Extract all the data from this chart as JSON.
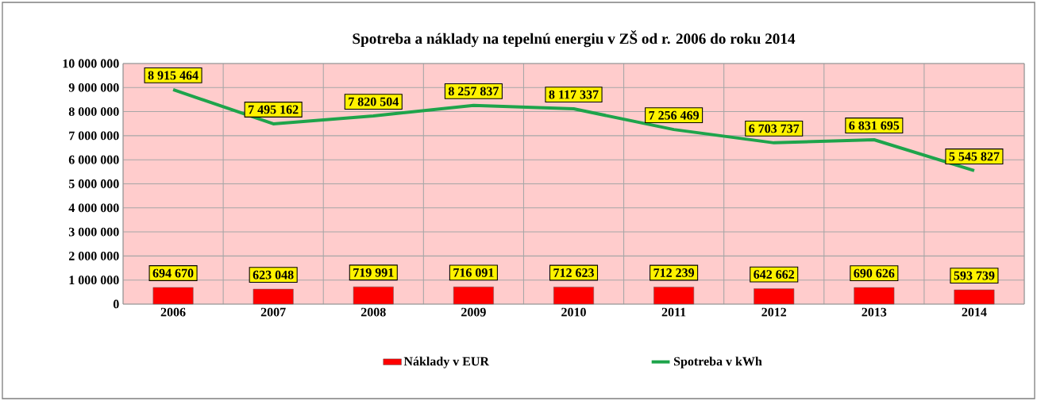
{
  "chart_data": {
    "type": "bar",
    "title": "Spotreba a náklady na  tepelnú energiu v ZŠ od r. 2006 do roku 2014",
    "categories": [
      "2006",
      "2007",
      "2008",
      "2009",
      "2010",
      "2011",
      "2012",
      "2013",
      "2014"
    ],
    "series": [
      {
        "name": "Náklady v EUR",
        "color": "#ff0000",
        "values": [
          694670,
          623048,
          719991,
          716091,
          712623,
          712239,
          642662,
          690626,
          593739
        ],
        "value_labels": [
          "694 670",
          "623 048",
          "719 991",
          "716 091",
          "712 623",
          "712 239",
          "642 662",
          "690 626",
          "593 739"
        ]
      },
      {
        "name": "Spotreba  v kWh",
        "type": "line",
        "color": "#1ea44b",
        "values": [
          8915464,
          7495162,
          7820504,
          8257837,
          8117337,
          7256469,
          6703737,
          6831695,
          5545827
        ],
        "value_labels": [
          "8 915 464",
          "7 495 162",
          "7 820 504",
          "8 257 837",
          "8 117 337",
          "7 256 469",
          "6 703 737",
          "6 831 695",
          "5 545 827"
        ]
      }
    ],
    "ylim": [
      0,
      10000000
    ],
    "yticks": [
      {
        "value": 0,
        "label": "0"
      },
      {
        "value": 1000000,
        "label": "1 000 000"
      },
      {
        "value": 2000000,
        "label": "2 000 000"
      },
      {
        "value": 3000000,
        "label": "3 000 000"
      },
      {
        "value": 4000000,
        "label": "4 000 000"
      },
      {
        "value": 5000000,
        "label": "5 000 000"
      },
      {
        "value": 6000000,
        "label": "6 000 000"
      },
      {
        "value": 7000000,
        "label": "7 000 000"
      },
      {
        "value": 8000000,
        "label": "8 000 000"
      },
      {
        "value": 9000000,
        "label": "9 000 000"
      },
      {
        "value": 10000000,
        "label": "10 000 000"
      }
    ],
    "grid": true,
    "legend": "bottom",
    "marker": "none",
    "line_style": "solid"
  }
}
